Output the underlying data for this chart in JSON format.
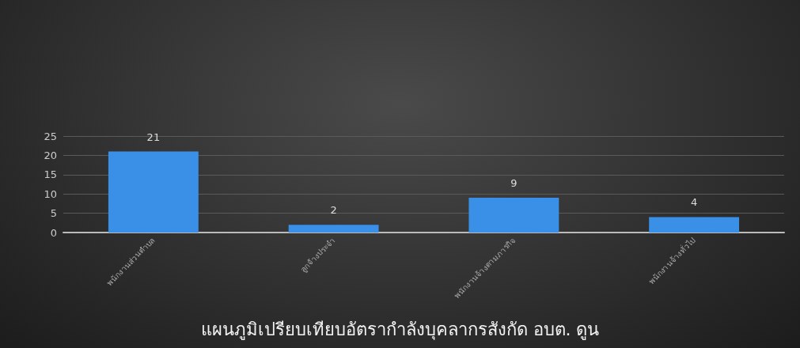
{
  "chart_data": {
    "type": "bar",
    "title": "แผนภูมิเปรียบเทียบอัตรากำลังบุคลากรสังกัด อบต. ดูน",
    "categories": [
      "พนักงานส่วนตำบล",
      "ลูกจ้างประจำ",
      "พนักงานจ้างตามภารกิจ",
      "พนักงานจ้างทั่วไป"
    ],
    "values": [
      21,
      2,
      9,
      4
    ],
    "color": "#3a8fe6",
    "ylim": [
      0,
      25
    ],
    "yticks": [
      0,
      5,
      10,
      15,
      20,
      25
    ],
    "grid": "y",
    "data_labels": true
  }
}
